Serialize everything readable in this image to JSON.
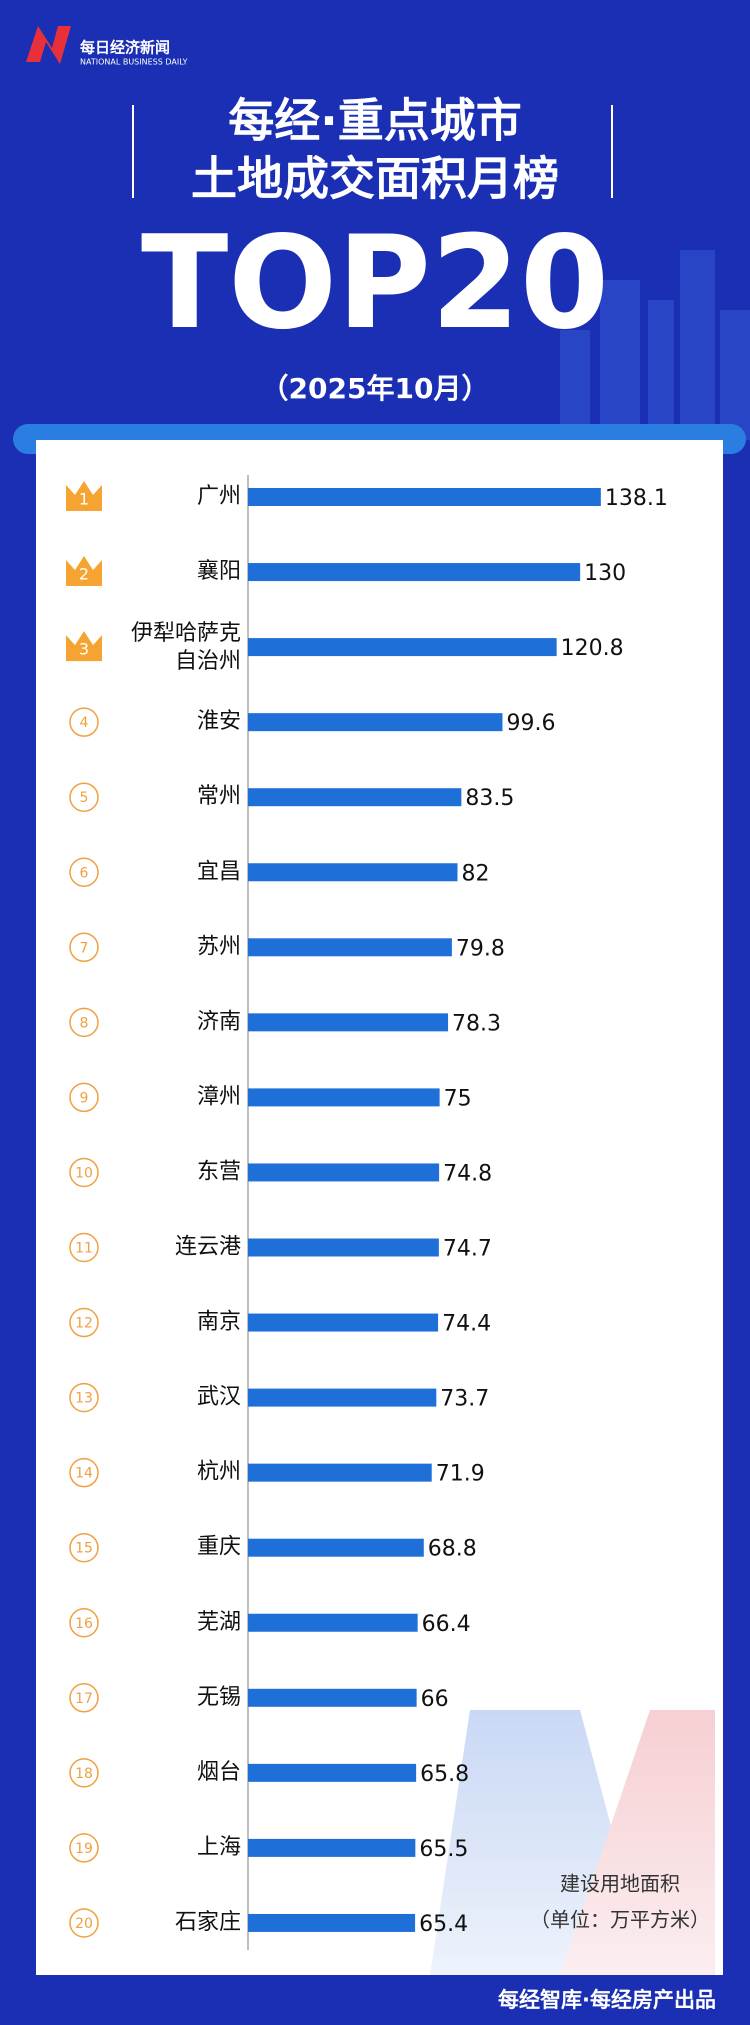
{
  "logo": {
    "name": "每日经济新闻",
    "english": "NATIONAL BUSINESS DAILY"
  },
  "chart_data": {
    "type": "bar",
    "orientation": "horizontal",
    "title_lines": [
      "每经·重点城市",
      "土地成交面积月榜"
    ],
    "headline": "TOP20",
    "subtitle": "（2025年10月）",
    "ranks": [
      1,
      2,
      3,
      4,
      5,
      6,
      7,
      8,
      9,
      10,
      11,
      12,
      13,
      14,
      15,
      16,
      17,
      18,
      19,
      20
    ],
    "categories": [
      "广州",
      "襄阳",
      "伊犁哈萨克自治州",
      "淮安",
      "常州",
      "宜昌",
      "苏州",
      "济南",
      "漳州",
      "东营",
      "连云港",
      "南京",
      "武汉",
      "杭州",
      "重庆",
      "芜湖",
      "无锡",
      "烟台",
      "上海",
      "石家庄"
    ],
    "values": [
      138.1,
      130,
      120.8,
      99.6,
      83.5,
      82,
      79.8,
      78.3,
      75,
      74.8,
      74.7,
      74.4,
      73.7,
      71.9,
      68.8,
      66.4,
      66,
      65.8,
      65.5,
      65.4
    ],
    "color": "#1f6fd8",
    "note_lines": [
      "建设用地面积",
      "（单位：万平方米）"
    ]
  },
  "footer": "每经智库·每经房产出品"
}
